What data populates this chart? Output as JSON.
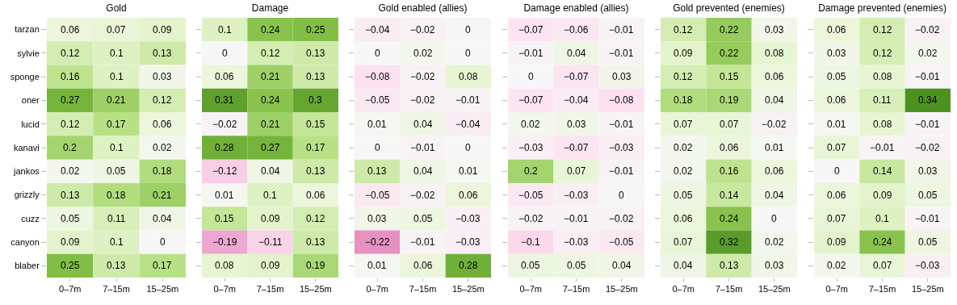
{
  "chart_data": [
    {
      "type": "heatmap",
      "title": "Gold",
      "data_labels": true,
      "categories": [
        "0–7m",
        "7–15m",
        "15–25m"
      ],
      "y_categories": [
        "tarzan",
        "sylvie",
        "sponge",
        "oner",
        "lucid",
        "kanavi",
        "jankos",
        "grizzly",
        "cuzz",
        "canyon",
        "blaber"
      ],
      "cells": [
        [
          0.06,
          0.07,
          0.09
        ],
        [
          0.12,
          0.1,
          0.13
        ],
        [
          0.16,
          0.1,
          0.03
        ],
        [
          0.27,
          0.21,
          0.12
        ],
        [
          0.12,
          0.17,
          0.06
        ],
        [
          0.2,
          0.1,
          0.02
        ],
        [
          0.02,
          0.05,
          0.18
        ],
        [
          0.13,
          0.18,
          0.21
        ],
        [
          0.05,
          0.11,
          0.04
        ],
        [
          0.09,
          0.1,
          0
        ],
        [
          0.25,
          0.13,
          0.17
        ]
      ]
    },
    {
      "type": "heatmap",
      "title": "Damage",
      "data_labels": true,
      "categories": [
        "0–7m",
        "7–15m",
        "15–25m"
      ],
      "y_categories": [
        null,
        null,
        null,
        null,
        null,
        null,
        null,
        null,
        null,
        null,
        null
      ],
      "tick_labels": "x",
      "cells": [
        [
          0.1,
          0.24,
          0.25
        ],
        [
          0,
          0.12,
          0.13
        ],
        [
          0.06,
          0.21,
          0.13
        ],
        [
          0.31,
          0.24,
          0.3
        ],
        [
          -0.02,
          0.21,
          0.15
        ],
        [
          0.28,
          0.27,
          0.17
        ],
        [
          -0.12,
          0.04,
          0.13
        ],
        [
          0.01,
          0.1,
          0.06
        ],
        [
          0.15,
          0.09,
          0.12
        ],
        [
          -0.19,
          -0.11,
          0.13
        ],
        [
          0.08,
          0.09,
          0.19
        ]
      ]
    },
    {
      "type": "heatmap",
      "title": "Gold enabled (allies)",
      "data_labels": true,
      "categories": [
        "0–7m",
        "7–15m",
        "15–25m"
      ],
      "y_categories": [
        null,
        null,
        null,
        null,
        null,
        null,
        null,
        null,
        null,
        null,
        null
      ],
      "tick_labels": "x",
      "cells": [
        [
          -0.04,
          -0.02,
          0
        ],
        [
          0,
          0.02,
          0
        ],
        [
          -0.08,
          -0.02,
          0.08
        ],
        [
          -0.05,
          -0.02,
          -0.01
        ],
        [
          0.01,
          0.04,
          -0.04
        ],
        [
          0,
          -0.01,
          0
        ],
        [
          0.13,
          0.04,
          0.01
        ],
        [
          -0.05,
          -0.02,
          0.06
        ],
        [
          0.03,
          0.05,
          -0.03
        ],
        [
          -0.22,
          -0.01,
          -0.03
        ],
        [
          0.01,
          0.06,
          0.28
        ]
      ]
    },
    {
      "type": "heatmap",
      "title": "Damage enabled (allies)",
      "data_labels": true,
      "categories": [
        "0–7m",
        "7–15m",
        "15–25m"
      ],
      "y_categories": [
        null,
        null,
        null,
        null,
        null,
        null,
        null,
        null,
        null,
        null,
        null
      ],
      "tick_labels": "x",
      "cells": [
        [
          -0.07,
          -0.06,
          -0.01
        ],
        [
          -0.01,
          0.04,
          -0.01
        ],
        [
          0,
          -0.07,
          0.03
        ],
        [
          -0.07,
          -0.04,
          -0.08
        ],
        [
          0.02,
          0.03,
          -0.01
        ],
        [
          -0.03,
          -0.07,
          -0.03
        ],
        [
          0.2,
          0.07,
          -0.01
        ],
        [
          -0.05,
          -0.03,
          0
        ],
        [
          -0.02,
          -0.01,
          -0.02
        ],
        [
          -0.1,
          -0.03,
          -0.05
        ],
        [
          0.05,
          0.05,
          0.04
        ]
      ]
    },
    {
      "type": "heatmap",
      "title": "Gold prevented (enemies)",
      "data_labels": true,
      "categories": [
        "0–7m",
        "7–15m",
        "15–25m"
      ],
      "y_categories": [
        null,
        null,
        null,
        null,
        null,
        null,
        null,
        null,
        null,
        null,
        null
      ],
      "tick_labels": "x",
      "cells": [
        [
          0.12,
          0.22,
          0.03
        ],
        [
          0.09,
          0.22,
          0.08
        ],
        [
          0.12,
          0.15,
          0.06
        ],
        [
          0.18,
          0.19,
          0.04
        ],
        [
          0.07,
          0.07,
          -0.02
        ],
        [
          0.02,
          0.06,
          0.01
        ],
        [
          0.02,
          0.16,
          0.06
        ],
        [
          0.05,
          0.14,
          0.04
        ],
        [
          0.06,
          0.24,
          0
        ],
        [
          0.07,
          0.32,
          0.02
        ],
        [
          0.04,
          0.13,
          0.03
        ]
      ]
    },
    {
      "type": "heatmap",
      "title": "Damage prevented (enemies)",
      "data_labels": true,
      "categories": [
        "0–7m",
        "7–15m",
        "15–25m"
      ],
      "y_categories": [
        null,
        null,
        null,
        null,
        null,
        null,
        null,
        null,
        null,
        null,
        null
      ],
      "tick_labels": "x",
      "cells": [
        [
          0.06,
          0.12,
          -0.02
        ],
        [
          0.03,
          0.12,
          0.02
        ],
        [
          0.05,
          0.08,
          -0.01
        ],
        [
          0.06,
          0.11,
          0.34
        ],
        [
          0.01,
          0.08,
          -0.01
        ],
        [
          0.07,
          -0.01,
          -0.02
        ],
        [
          0,
          0.14,
          0.03
        ],
        [
          0.06,
          0.09,
          0.05
        ],
        [
          0.07,
          0.1,
          -0.01
        ],
        [
          0.09,
          0.24,
          0.05
        ],
        [
          0.02,
          0.07,
          -0.03
        ]
      ]
    }
  ]
}
